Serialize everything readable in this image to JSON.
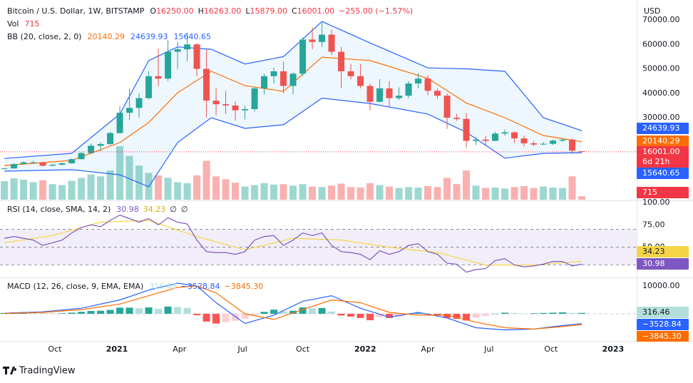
{
  "chart_data": [
    {
      "type": "candlestick",
      "title": "Bitcoin / U.S. Dollar, 1W, BITSTAMP",
      "ohlc_legend": [
        {
          "key": "O",
          "value": "16250.00"
        },
        {
          "key": "H",
          "value": "16263.00"
        },
        {
          "key": "L",
          "value": "15879.00"
        },
        {
          "key": "C",
          "value": "16001.00"
        }
      ],
      "change": "−255.00 (−1.57%)",
      "currency": "USD",
      "countdown": "6d 21h",
      "up_color": "#26a69a",
      "down_color": "#ef5350",
      "x": [
        0,
        2,
        4,
        6,
        8,
        10,
        12,
        14,
        16,
        18,
        20,
        22,
        24,
        26,
        28,
        30,
        32,
        34,
        36,
        38,
        40,
        42,
        44,
        46,
        48,
        50,
        52,
        54,
        56,
        58,
        60,
        62,
        64,
        66,
        68,
        70,
        72,
        74,
        76,
        78,
        80,
        82,
        84,
        86,
        88,
        90,
        92,
        94,
        96,
        98,
        100,
        102,
        104,
        106,
        108,
        110,
        112,
        114,
        116,
        118,
        120
      ],
      "ohlc": [
        [
          9100,
          9500,
          9000,
          9200
        ],
        [
          9200,
          11400,
          9100,
          11000
        ],
        [
          11000,
          12100,
          10900,
          11700
        ],
        [
          11700,
          12400,
          11200,
          11700
        ],
        [
          11700,
          11900,
          10000,
          10300
        ],
        [
          10300,
          11000,
          10200,
          10700
        ],
        [
          10700,
          11700,
          10600,
          11300
        ],
        [
          11300,
          13300,
          11200,
          13000
        ],
        [
          13000,
          16000,
          12900,
          15500
        ],
        [
          15500,
          19400,
          15000,
          18500
        ],
        [
          18500,
          19900,
          16300,
          19200
        ],
        [
          19200,
          24200,
          18700,
          23700
        ],
        [
          23700,
          34800,
          23500,
          32000
        ],
        [
          32000,
          41900,
          29000,
          34000
        ],
        [
          34000,
          40000,
          30000,
          38000
        ],
        [
          38000,
          49000,
          37500,
          47000
        ],
        [
          47000,
          58300,
          43000,
          46000
        ],
        [
          46000,
          61700,
          45000,
          57000
        ],
        [
          57000,
          61000,
          50000,
          58000
        ],
        [
          58000,
          64800,
          53000,
          60000
        ],
        [
          60000,
          60500,
          47000,
          50000
        ],
        [
          50000,
          58000,
          30000,
          37000
        ],
        [
          37000,
          42000,
          31000,
          35500
        ],
        [
          35500,
          41000,
          31500,
          35000
        ],
        [
          35000,
          36600,
          28800,
          33000
        ],
        [
          33000,
          35000,
          29300,
          33500
        ],
        [
          33500,
          42500,
          32500,
          42000
        ],
        [
          42000,
          48000,
          39500,
          47000
        ],
        [
          47000,
          50500,
          44000,
          49000
        ],
        [
          49000,
          52900,
          40000,
          43000
        ],
        [
          43000,
          48500,
          39600,
          48000
        ],
        [
          48000,
          62900,
          47000,
          62000
        ],
        [
          62000,
          67000,
          58000,
          61000
        ],
        [
          61000,
          69000,
          59000,
          64000
        ],
        [
          64000,
          66000,
          55600,
          57000
        ],
        [
          57000,
          59000,
          42000,
          49000
        ],
        [
          49000,
          52000,
          45700,
          47000
        ],
        [
          47000,
          51900,
          42000,
          43000
        ],
        [
          43000,
          44000,
          33000,
          36500
        ],
        [
          36500,
          45800,
          36300,
          42000
        ],
        [
          42000,
          45000,
          34300,
          38000
        ],
        [
          38000,
          42400,
          37200,
          39000
        ],
        [
          39000,
          45000,
          38000,
          44000
        ],
        [
          44000,
          48200,
          42000,
          46000
        ],
        [
          46000,
          47400,
          39200,
          41000
        ],
        [
          41000,
          42000,
          37700,
          39000
        ],
        [
          39000,
          40000,
          25400,
          30000
        ],
        [
          30000,
          31600,
          28700,
          29500
        ],
        [
          29500,
          31800,
          17600,
          20500
        ],
        [
          20500,
          22000,
          18800,
          21000
        ],
        [
          21000,
          22500,
          18900,
          20500
        ],
        [
          20500,
          24300,
          20400,
          23500
        ],
        [
          23500,
          25200,
          22600,
          24000
        ],
        [
          24000,
          24400,
          19600,
          21500
        ],
        [
          21500,
          22700,
          18200,
          19500
        ],
        [
          19500,
          20400,
          18300,
          19000
        ],
        [
          19000,
          20000,
          18800,
          19300
        ],
        [
          19300,
          21100,
          18900,
          20600
        ],
        [
          20600,
          21500,
          20000,
          21000
        ],
        [
          21000,
          21500,
          15600,
          16500
        ],
        [
          16250,
          16263,
          15879,
          16001
        ]
      ],
      "volume": {
        "name": "Vol",
        "values": [
          3800,
          4400,
          4100,
          3600,
          4000,
          3200,
          3000,
          3900,
          4500,
          5200,
          4800,
          6000,
          11000,
          9000,
          7000,
          5500,
          5000,
          4500,
          3600,
          3400,
          5000,
          8000,
          4800,
          4200,
          3500,
          2700,
          3000,
          3400,
          3100,
          3200,
          2900,
          3200,
          2700,
          2600,
          2900,
          3300,
          2600,
          2500,
          3400,
          3000,
          2700,
          2400,
          2600,
          2500,
          2800,
          2600,
          4500,
          3200,
          6000,
          2900,
          2400,
          2500,
          2300,
          2600,
          2800,
          2400,
          2700,
          2500,
          2400,
          4800,
          715
        ]
      },
      "bb": {
        "name": "BB (20, close, 2, 0)",
        "x": [
          0,
          14,
          24,
          30,
          36,
          43,
          50,
          58,
          66,
          76,
          88,
          96,
          104,
          112,
          120
        ],
        "fill": "#2196f3",
        "basis": {
          "color": "#ff6d00",
          "values": [
            10400,
            12500,
            19800,
            28000,
            40200,
            49000,
            43100,
            40800,
            54800,
            53400,
            46100,
            36000,
            30000,
            22700,
            20140.29
          ]
        },
        "upper": {
          "color": "#2962ff",
          "values": [
            13300,
            15400,
            31500,
            53400,
            59000,
            58000,
            52000,
            55000,
            69400,
            60600,
            50400,
            50000,
            49000,
            30000,
            24639.93
          ]
        },
        "lower": {
          "color": "#2962ff",
          "values": [
            8100,
            8700,
            6600,
            1700,
            19800,
            30000,
            25600,
            27100,
            38000,
            35800,
            31500,
            24000,
            13400,
            15400,
            15640.65
          ]
        }
      },
      "xlim": [
        -0.9,
        131.4
      ],
      "xticks": [
        {
          "value": 10.5,
          "label": "Oct"
        },
        {
          "value": 23.4,
          "label": "2021"
        },
        {
          "value": 36.4,
          "label": "Apr"
        },
        {
          "value": 49.5,
          "label": "Jul"
        },
        {
          "value": 62,
          "label": "Oct"
        },
        {
          "value": 75,
          "label": "2022"
        },
        {
          "value": 88,
          "label": "Apr"
        },
        {
          "value": 100.7,
          "label": "Jul"
        },
        {
          "value": 113.6,
          "label": "Oct"
        },
        {
          "value": 126.5,
          "label": "2023"
        }
      ],
      "ylim": [
        -3600,
        78200
      ],
      "yticks": [
        {
          "value": 30000,
          "label": "30000.00"
        },
        {
          "value": 40000,
          "label": "40000.00"
        },
        {
          "value": 50000,
          "label": "50000.00"
        },
        {
          "value": 60000,
          "label": "60000.00"
        },
        {
          "value": 70000,
          "label": "70000.00"
        }
      ]
    },
    {
      "type": "line",
      "title": "RSI (14, close, SMA, 14, 2)",
      "extra_legend": [
        "∅",
        "∅"
      ],
      "rsi": {
        "color": "#7e57c2",
        "values": [
          60,
          62,
          60,
          58,
          52,
          55,
          58,
          66,
          72,
          75,
          73,
          80,
          86,
          82,
          78,
          82,
          75,
          83,
          78,
          76,
          58,
          45,
          44,
          44,
          42,
          45,
          58,
          62,
          63,
          52,
          58,
          66,
          63,
          66,
          52,
          45,
          44,
          42,
          36,
          46,
          42,
          45,
          52,
          54,
          45,
          42,
          32,
          31,
          22,
          25,
          26,
          35,
          37,
          30,
          28,
          29,
          31,
          34,
          34,
          29,
          30.98
        ]
      },
      "ma": {
        "color": "#f5d547",
        "x": [
          0,
          10,
          20,
          30,
          40,
          50,
          60,
          70,
          80,
          90,
          100,
          110,
          120
        ],
        "values": [
          55,
          63,
          78,
          80,
          62,
          47,
          60,
          58,
          50,
          44,
          30,
          30,
          34.23
        ]
      },
      "bands": [
        70,
        50,
        30
      ],
      "band_fill": "#7e57c2",
      "ylim": [
        16.9,
        100.8
      ],
      "yticks": [
        {
          "value": 100,
          "label": "100.00"
        },
        {
          "value": 75,
          "label": "75.00"
        },
        {
          "value": 50,
          "label": "50.00"
        }
      ]
    },
    {
      "type": "macd",
      "title": "MACD (12, 26, close, 9, EMA, EMA)",
      "legend_labels": [
        "316.46",
        "−3528.84",
        "−3845.30"
      ],
      "histogram": {
        "values": [
          300,
          500,
          600,
          500,
          300,
          200,
          200,
          400,
          700,
          1000,
          1100,
          1400,
          2200,
          2200,
          2000,
          2300,
          1800,
          2600,
          2400,
          2100,
          -500,
          -2800,
          -3500,
          -3000,
          -2500,
          -1800,
          -400,
          700,
          1500,
          900,
          1100,
          2300,
          2000,
          2100,
          800,
          -600,
          -1000,
          -1500,
          -2300,
          -1200,
          -1500,
          -1000,
          -200,
          300,
          -100,
          -400,
          -1500,
          -1800,
          -2400,
          -1400,
          -800,
          0,
          400,
          300,
          100,
          200,
          300,
          400,
          500,
          300,
          316.46
        ]
      },
      "lines_x": [
        0,
        8,
        16,
        24,
        30,
        36,
        40,
        44,
        50,
        56,
        62,
        68,
        74,
        80,
        86,
        92,
        98,
        104,
        110,
        116,
        120
      ],
      "macd": {
        "color": "#2962ff",
        "values": [
          200,
          700,
          2000,
          5000,
          8500,
          11000,
          10000,
          4000,
          -3500,
          -500,
          4500,
          6500,
          2000,
          -1200,
          500,
          -1500,
          -5000,
          -5800,
          -5500,
          -4200,
          -3528.84
        ]
      },
      "signal": {
        "color": "#ff6d00",
        "values": [
          100,
          500,
          1500,
          3500,
          6500,
          9500,
          10000,
          7500,
          0,
          -2000,
          1500,
          5000,
          4000,
          500,
          -500,
          -500,
          -3000,
          -5000,
          -5500,
          -4600,
          -3845.3
        ]
      },
      "ylim": [
        -9740,
        12800
      ],
      "yticks": [
        {
          "value": 10000,
          "label": "10000.00"
        }
      ]
    }
  ],
  "branding": "TradingView"
}
